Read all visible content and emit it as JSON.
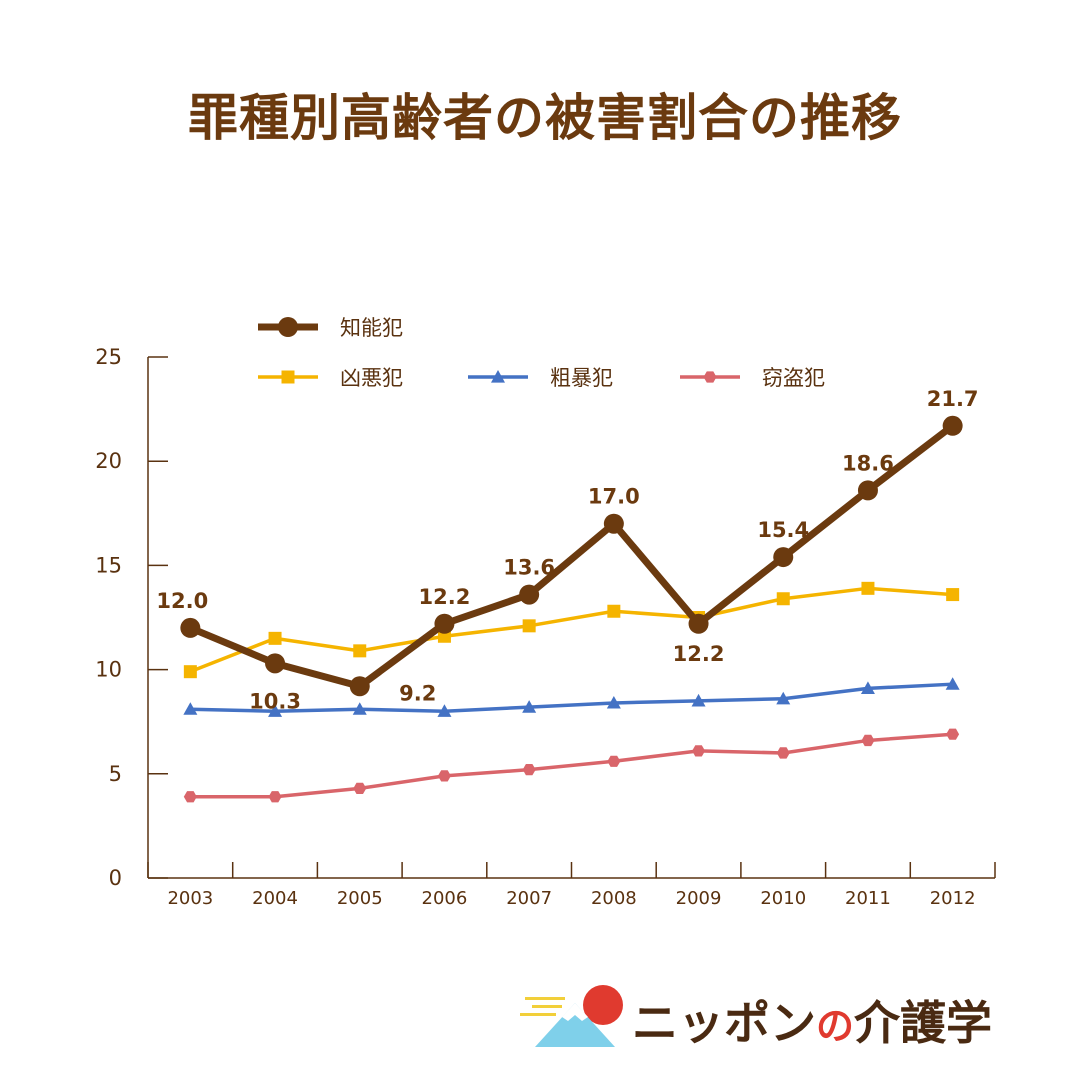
{
  "title": "罪種別高齢者の被害割合の推移",
  "logo": {
    "part1": "ニッポン",
    "part2": "の",
    "part3": "介護学"
  },
  "chart_data": {
    "type": "line",
    "categories": [
      "2003",
      "2004",
      "2005",
      "2006",
      "2007",
      "2008",
      "2009",
      "2010",
      "2011",
      "2012"
    ],
    "ylim": [
      0,
      25
    ],
    "yticks": [
      "0",
      "5",
      "10",
      "15",
      "20",
      "25"
    ],
    "grid": false,
    "legend_position": "top-left",
    "series": [
      {
        "name": "知能犯",
        "color": "#6b3a0f",
        "marker": "circle",
        "values": [
          12.0,
          10.3,
          9.2,
          12.2,
          13.6,
          17.0,
          12.2,
          15.4,
          18.6,
          21.7
        ],
        "labels": [
          "12.0",
          "10.3",
          "9.2",
          "12.2",
          "13.6",
          "17.0",
          "12.2",
          "15.4",
          "18.6",
          "21.7"
        ]
      },
      {
        "name": "凶悪犯",
        "color": "#f5b400",
        "marker": "square",
        "values": [
          9.9,
          11.5,
          10.9,
          11.6,
          12.1,
          12.8,
          12.5,
          13.4,
          13.9,
          13.6
        ]
      },
      {
        "name": "粗暴犯",
        "color": "#4472c4",
        "marker": "triangle",
        "values": [
          8.1,
          8.0,
          8.1,
          8.0,
          8.2,
          8.4,
          8.5,
          8.6,
          9.1,
          9.3
        ]
      },
      {
        "name": "窃盗犯",
        "color": "#d9656a",
        "marker": "hexagon",
        "values": [
          3.9,
          3.9,
          4.3,
          4.9,
          5.2,
          5.6,
          6.1,
          6.0,
          6.6,
          6.9
        ]
      }
    ]
  }
}
